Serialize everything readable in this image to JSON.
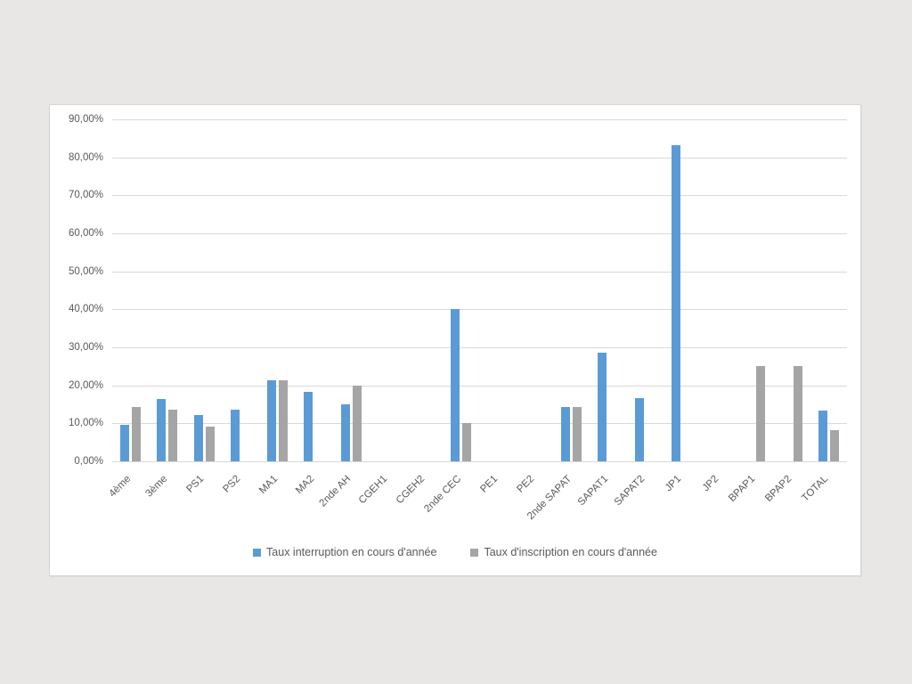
{
  "chart_data": {
    "type": "bar",
    "title": "",
    "xlabel": "",
    "ylabel": "",
    "categories": [
      "4ème",
      "3ème",
      "PS1",
      "PS2",
      "MA1",
      "MA2",
      "2nde AH",
      "CGEH1",
      "CGEH2",
      "2nde CEC",
      "PE1",
      "PE2",
      "2nde SAPAT",
      "SAPAT1",
      "SAPAT2",
      "JP1",
      "JP2",
      "BPAP1",
      "BPAP2",
      "TOTAL"
    ],
    "series": [
      {
        "name": "Taux interruption en cours d'année",
        "color": "#5B9BD5",
        "values": [
          9.5,
          16.4,
          12.2,
          13.5,
          21.3,
          18.3,
          15.0,
          0,
          0,
          40.0,
          0,
          0,
          14.3,
          28.6,
          16.7,
          83.3,
          0,
          0,
          0,
          13.3
        ]
      },
      {
        "name": "Taux d'inscription en cours d'année",
        "color": "#A5A5A5",
        "values": [
          14.2,
          13.6,
          9.1,
          0,
          21.3,
          0,
          20.0,
          0,
          0,
          10.0,
          0,
          0,
          14.3,
          0,
          0,
          0,
          0,
          25.0,
          25.0,
          8.3
        ]
      }
    ],
    "y_ticks": [
      "0,00%",
      "10,00%",
      "20,00%",
      "30,00%",
      "40,00%",
      "50,00%",
      "60,00%",
      "70,00%",
      "80,00%",
      "90,00%"
    ],
    "ylim": [
      0,
      90
    ],
    "y_step": 10,
    "grid": true,
    "legend_position": "bottom"
  },
  "colors": {
    "page_background": "#e9e7e5",
    "panel_background": "#ffffff",
    "gridline": "#d9d9d9",
    "axis_text": "#595959",
    "series_blue": "#5B9BD5",
    "series_gray": "#A5A5A5"
  }
}
